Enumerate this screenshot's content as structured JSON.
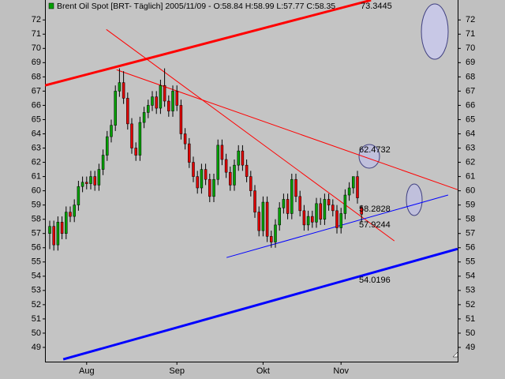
{
  "chart_data": {
    "type": "candlestick",
    "title": "Brent Oil Spot [BRT-  Täglich] 2005/11/09 - O:58.84 H:58.99 L:57.77 C:58.35",
    "categories": [
      null,
      null,
      null,
      null,
      null,
      null,
      null,
      null,
      null,
      "Aug",
      null,
      null,
      null,
      null,
      null,
      null,
      null,
      null,
      null,
      null,
      null,
      null,
      null,
      null,
      null,
      null,
      null,
      null,
      null,
      null,
      null,
      "Sep",
      null,
      null,
      null,
      null,
      null,
      null,
      null,
      null,
      null,
      null,
      null,
      null,
      null,
      null,
      null,
      null,
      null,
      null,
      null,
      null,
      "Okt",
      null,
      null,
      null,
      null,
      null,
      null,
      null,
      null,
      null,
      null,
      null,
      null,
      null,
      null,
      null,
      null,
      null,
      null,
      "Nov",
      null,
      null,
      null,
      null,
      null
    ],
    "open": [
      57.0,
      57.5,
      56.2,
      57.8,
      57.0,
      58.5,
      58.2,
      59.0,
      60.3,
      60.6,
      60.5,
      61.0,
      60.4,
      61.5,
      62.5,
      63.8,
      64.6,
      67.0,
      67.6,
      66.5,
      64.7,
      63.0,
      62.5,
      64.8,
      65.5,
      66.0,
      66.6,
      65.8,
      67.4,
      66.3,
      65.6,
      67.0,
      66.0,
      64.0,
      63.3,
      62.0,
      61.0,
      60.2,
      61.5,
      60.8,
      59.6,
      60.8,
      63.2,
      62.2,
      61.3,
      60.4,
      61.8,
      62.8,
      61.8,
      61.0,
      60.0,
      58.5,
      57.2,
      59.2,
      56.8,
      56.4,
      57.6,
      58.8,
      59.4,
      58.4,
      60.8,
      59.6,
      58.6,
      57.6,
      58.2,
      57.8,
      59.1,
      58.0,
      59.4,
      59.0,
      58.6,
      57.4,
      58.4,
      59.7,
      60.2,
      61.0,
      58.84
    ],
    "high": [
      57.9,
      57.9,
      58.2,
      58.2,
      58.9,
      58.9,
      59.4,
      60.7,
      61.0,
      61.0,
      61.4,
      61.4,
      61.9,
      62.9,
      64.2,
      65.0,
      67.4,
      68.6,
      68.4,
      66.9,
      65.1,
      63.4,
      65.2,
      65.9,
      66.4,
      67.0,
      67.0,
      67.8,
      68.6,
      66.7,
      67.4,
      67.4,
      66.4,
      64.4,
      63.7,
      62.4,
      61.4,
      61.9,
      61.9,
      61.2,
      61.2,
      63.6,
      63.6,
      62.6,
      61.7,
      62.2,
      63.2,
      63.2,
      62.2,
      61.4,
      60.4,
      58.9,
      59.6,
      59.6,
      57.2,
      58.0,
      59.2,
      59.8,
      59.8,
      61.2,
      61.2,
      60.0,
      59.0,
      58.6,
      58.6,
      59.5,
      59.5,
      59.8,
      59.8,
      59.4,
      59.0,
      58.8,
      60.1,
      60.6,
      61.0,
      61.4,
      58.99
    ],
    "low": [
      55.9,
      55.8,
      55.8,
      56.6,
      56.6,
      57.8,
      57.8,
      58.6,
      59.9,
      60.1,
      60.1,
      60.0,
      60.0,
      61.1,
      62.1,
      63.4,
      64.2,
      66.6,
      66.1,
      64.3,
      62.6,
      62.1,
      62.1,
      64.4,
      65.1,
      65.6,
      65.4,
      65.4,
      65.9,
      65.2,
      65.2,
      65.6,
      63.6,
      62.9,
      61.6,
      60.6,
      59.8,
      59.8,
      60.4,
      59.2,
      59.2,
      60.4,
      61.8,
      60.9,
      60.0,
      60.0,
      61.4,
      61.4,
      60.6,
      59.6,
      58.1,
      56.8,
      56.8,
      56.4,
      56.0,
      56.0,
      57.2,
      58.4,
      58.0,
      58.0,
      59.2,
      58.2,
      57.2,
      57.2,
      57.4,
      57.4,
      57.6,
      57.6,
      58.6,
      58.2,
      57.0,
      57.0,
      58.0,
      59.3,
      59.8,
      59.1,
      57.77
    ],
    "close": [
      57.5,
      56.2,
      57.8,
      57.0,
      58.5,
      58.2,
      59.0,
      60.3,
      60.6,
      60.5,
      61.0,
      60.4,
      61.5,
      62.5,
      63.8,
      64.6,
      67.0,
      67.6,
      66.5,
      64.7,
      63.0,
      62.5,
      64.8,
      65.5,
      66.0,
      66.6,
      65.8,
      67.4,
      66.3,
      65.6,
      67.0,
      66.0,
      64.0,
      63.3,
      62.0,
      61.0,
      60.2,
      61.5,
      60.8,
      59.6,
      60.8,
      63.2,
      62.2,
      61.3,
      60.4,
      61.8,
      62.8,
      61.8,
      61.0,
      60.0,
      58.5,
      57.2,
      59.2,
      56.8,
      56.4,
      57.6,
      58.8,
      59.4,
      58.4,
      60.8,
      59.6,
      58.6,
      57.6,
      58.2,
      57.8,
      59.1,
      58.0,
      59.4,
      59.0,
      58.6,
      57.4,
      58.4,
      59.7,
      60.2,
      61.0,
      59.5,
      58.35
    ],
    "up_color": "#00a000",
    "down_color": "#e00000",
    "wick_color": "#000000",
    "ylim": [
      48.0,
      73.4
    ],
    "yticks": [
      49,
      50,
      51,
      52,
      53,
      54,
      55,
      56,
      57,
      58,
      59,
      60,
      61,
      62,
      63,
      64,
      65,
      66,
      67,
      68,
      69,
      70,
      71,
      72
    ],
    "grid": false,
    "trendlines": [
      {
        "label": "73.3445",
        "color": "#ff0000",
        "width": 3,
        "x": [
          -1.15,
          78.3
        ],
        "y": [
          67.4,
          73.39
        ]
      },
      {
        "label": "62.4732",
        "color": "#ff0000",
        "width": 1,
        "x": [
          16.3,
          99.4
        ],
        "y": [
          68.5,
          60.08
        ]
      },
      {
        "label": "58.2828",
        "color": "#ff0000",
        "width": 1,
        "x": [
          13.8,
          84.0
        ],
        "y": [
          71.33,
          56.48
        ]
      },
      {
        "label": "57.9244",
        "color": "#0000ff",
        "width": 1,
        "x": [
          43.1,
          97.1
        ],
        "y": [
          55.31,
          59.7
        ]
      },
      {
        "label": "54.0196",
        "color": "#0000ff",
        "width": 3,
        "x": [
          3.3,
          99.4
        ],
        "y": [
          48.16,
          55.92
        ]
      }
    ]
  }
}
